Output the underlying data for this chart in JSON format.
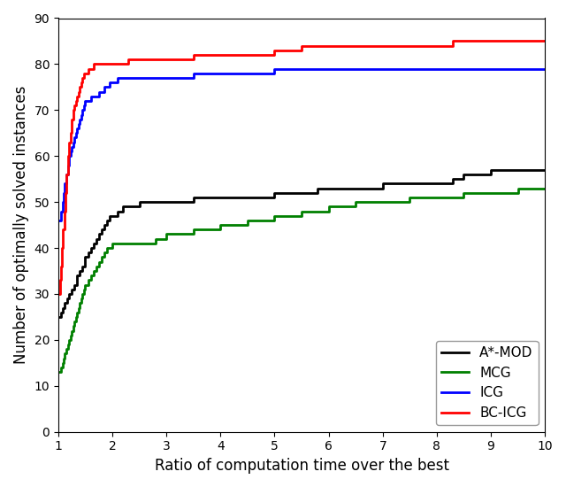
{
  "title": "",
  "xlabel": "Ratio of computation time over the best",
  "ylabel": "Number of optimally solved instances",
  "xlim": [
    1,
    10
  ],
  "ylim": [
    0,
    90
  ],
  "xticks": [
    1,
    2,
    3,
    4,
    5,
    6,
    7,
    8,
    9,
    10
  ],
  "yticks": [
    0,
    10,
    20,
    30,
    40,
    50,
    60,
    70,
    80,
    90
  ],
  "series": {
    "A*-MOD": {
      "color": "#000000",
      "x": [
        1.0,
        1.05,
        1.08,
        1.12,
        1.16,
        1.2,
        1.25,
        1.3,
        1.35,
        1.4,
        1.45,
        1.5,
        1.55,
        1.6,
        1.65,
        1.7,
        1.75,
        1.8,
        1.85,
        1.9,
        1.95,
        2.0,
        2.1,
        2.2,
        2.3,
        2.4,
        2.5,
        2.7,
        3.0,
        3.5,
        4.0,
        5.0,
        5.5,
        5.8,
        6.0,
        7.0,
        8.0,
        8.3,
        8.5,
        9.0,
        10.0
      ],
      "y": [
        25,
        26,
        27,
        28,
        29,
        30,
        31,
        32,
        34,
        35,
        36,
        38,
        39,
        40,
        41,
        42,
        43,
        44,
        45,
        46,
        47,
        47,
        48,
        49,
        49,
        49,
        50,
        50,
        50,
        51,
        51,
        52,
        52,
        53,
        53,
        54,
        54,
        55,
        56,
        57,
        57
      ]
    },
    "MCG": {
      "color": "#008000",
      "x": [
        1.0,
        1.05,
        1.08,
        1.1,
        1.12,
        1.15,
        1.18,
        1.2,
        1.23,
        1.25,
        1.28,
        1.3,
        1.33,
        1.35,
        1.38,
        1.4,
        1.43,
        1.45,
        1.48,
        1.5,
        1.55,
        1.6,
        1.65,
        1.7,
        1.75,
        1.8,
        1.85,
        1.9,
        1.95,
        2.0,
        2.1,
        2.2,
        2.4,
        2.6,
        2.8,
        3.0,
        3.5,
        4.0,
        4.5,
        5.0,
        5.5,
        6.0,
        6.5,
        7.0,
        7.5,
        8.0,
        8.5,
        9.0,
        9.5,
        10.0
      ],
      "y": [
        13,
        14,
        15,
        16,
        17,
        18,
        19,
        20,
        21,
        22,
        23,
        24,
        25,
        26,
        27,
        28,
        29,
        30,
        31,
        32,
        33,
        34,
        35,
        36,
        37,
        38,
        39,
        40,
        40,
        41,
        41,
        41,
        41,
        41,
        42,
        43,
        44,
        45,
        46,
        47,
        48,
        49,
        50,
        50,
        51,
        51,
        52,
        52,
        53,
        53
      ]
    },
    "ICG": {
      "color": "#0000ff",
      "x": [
        1.0,
        1.05,
        1.08,
        1.1,
        1.12,
        1.15,
        1.18,
        1.2,
        1.23,
        1.25,
        1.28,
        1.3,
        1.33,
        1.35,
        1.38,
        1.4,
        1.43,
        1.45,
        1.48,
        1.5,
        1.55,
        1.6,
        1.65,
        1.7,
        1.75,
        1.8,
        1.85,
        1.9,
        1.95,
        2.0,
        2.1,
        2.2,
        2.3,
        2.4,
        2.5,
        2.6,
        2.8,
        3.0,
        3.5,
        4.0,
        5.0,
        5.5,
        5.8,
        6.0,
        7.0,
        8.0,
        9.0,
        10.0
      ],
      "y": [
        46,
        48,
        50,
        52,
        54,
        56,
        58,
        60,
        61,
        62,
        63,
        64,
        65,
        66,
        67,
        68,
        69,
        70,
        71,
        72,
        72,
        73,
        73,
        73,
        74,
        74,
        75,
        75,
        76,
        76,
        77,
        77,
        77,
        77,
        77,
        77,
        77,
        77,
        78,
        78,
        79,
        79,
        79,
        79,
        79,
        79,
        79,
        79
      ]
    },
    "BC-ICG": {
      "color": "#ff0000",
      "x": [
        1.0,
        1.03,
        1.05,
        1.07,
        1.09,
        1.11,
        1.13,
        1.15,
        1.18,
        1.2,
        1.23,
        1.25,
        1.28,
        1.3,
        1.33,
        1.35,
        1.38,
        1.4,
        1.43,
        1.45,
        1.48,
        1.5,
        1.55,
        1.6,
        1.65,
        1.7,
        1.75,
        1.8,
        1.85,
        1.9,
        1.95,
        2.0,
        2.1,
        2.3,
        2.5,
        2.8,
        3.0,
        3.5,
        4.0,
        5.0,
        5.5,
        5.8,
        6.0,
        8.0,
        8.3,
        9.0,
        10.0
      ],
      "y": [
        30,
        33,
        36,
        40,
        44,
        48,
        52,
        56,
        60,
        63,
        65,
        68,
        70,
        71,
        72,
        73,
        74,
        75,
        76,
        77,
        78,
        78,
        79,
        79,
        80,
        80,
        80,
        80,
        80,
        80,
        80,
        80,
        80,
        81,
        81,
        81,
        81,
        82,
        82,
        83,
        84,
        84,
        84,
        84,
        85,
        85,
        85
      ]
    }
  },
  "legend_loc": "lower right",
  "legend_order": [
    "A*-MOD",
    "MCG",
    "ICG",
    "BC-ICG"
  ],
  "linewidth": 2.0,
  "figsize": [
    6.4,
    5.5
  ],
  "dpi": 100
}
